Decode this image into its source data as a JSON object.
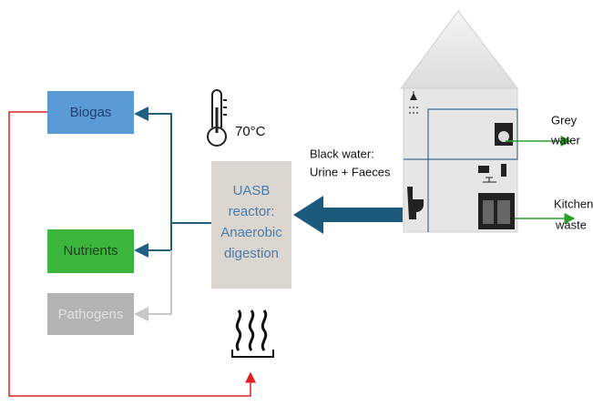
{
  "outputs": [
    {
      "label": "Biogas"
    },
    {
      "label": "Nutrients"
    },
    {
      "label": "Pathogens"
    }
  ],
  "temperature": "70°C",
  "reactor": {
    "lines": [
      "UASB",
      "reactor:",
      "Anaerobic",
      "digestion"
    ]
  },
  "input": {
    "lines": [
      "Black water:",
      "Urine + Faeces"
    ]
  },
  "house_outputs": [
    {
      "lines": [
        "Grey",
        "water"
      ]
    },
    {
      "lines": [
        "Kitchen",
        "waste"
      ]
    }
  ]
}
